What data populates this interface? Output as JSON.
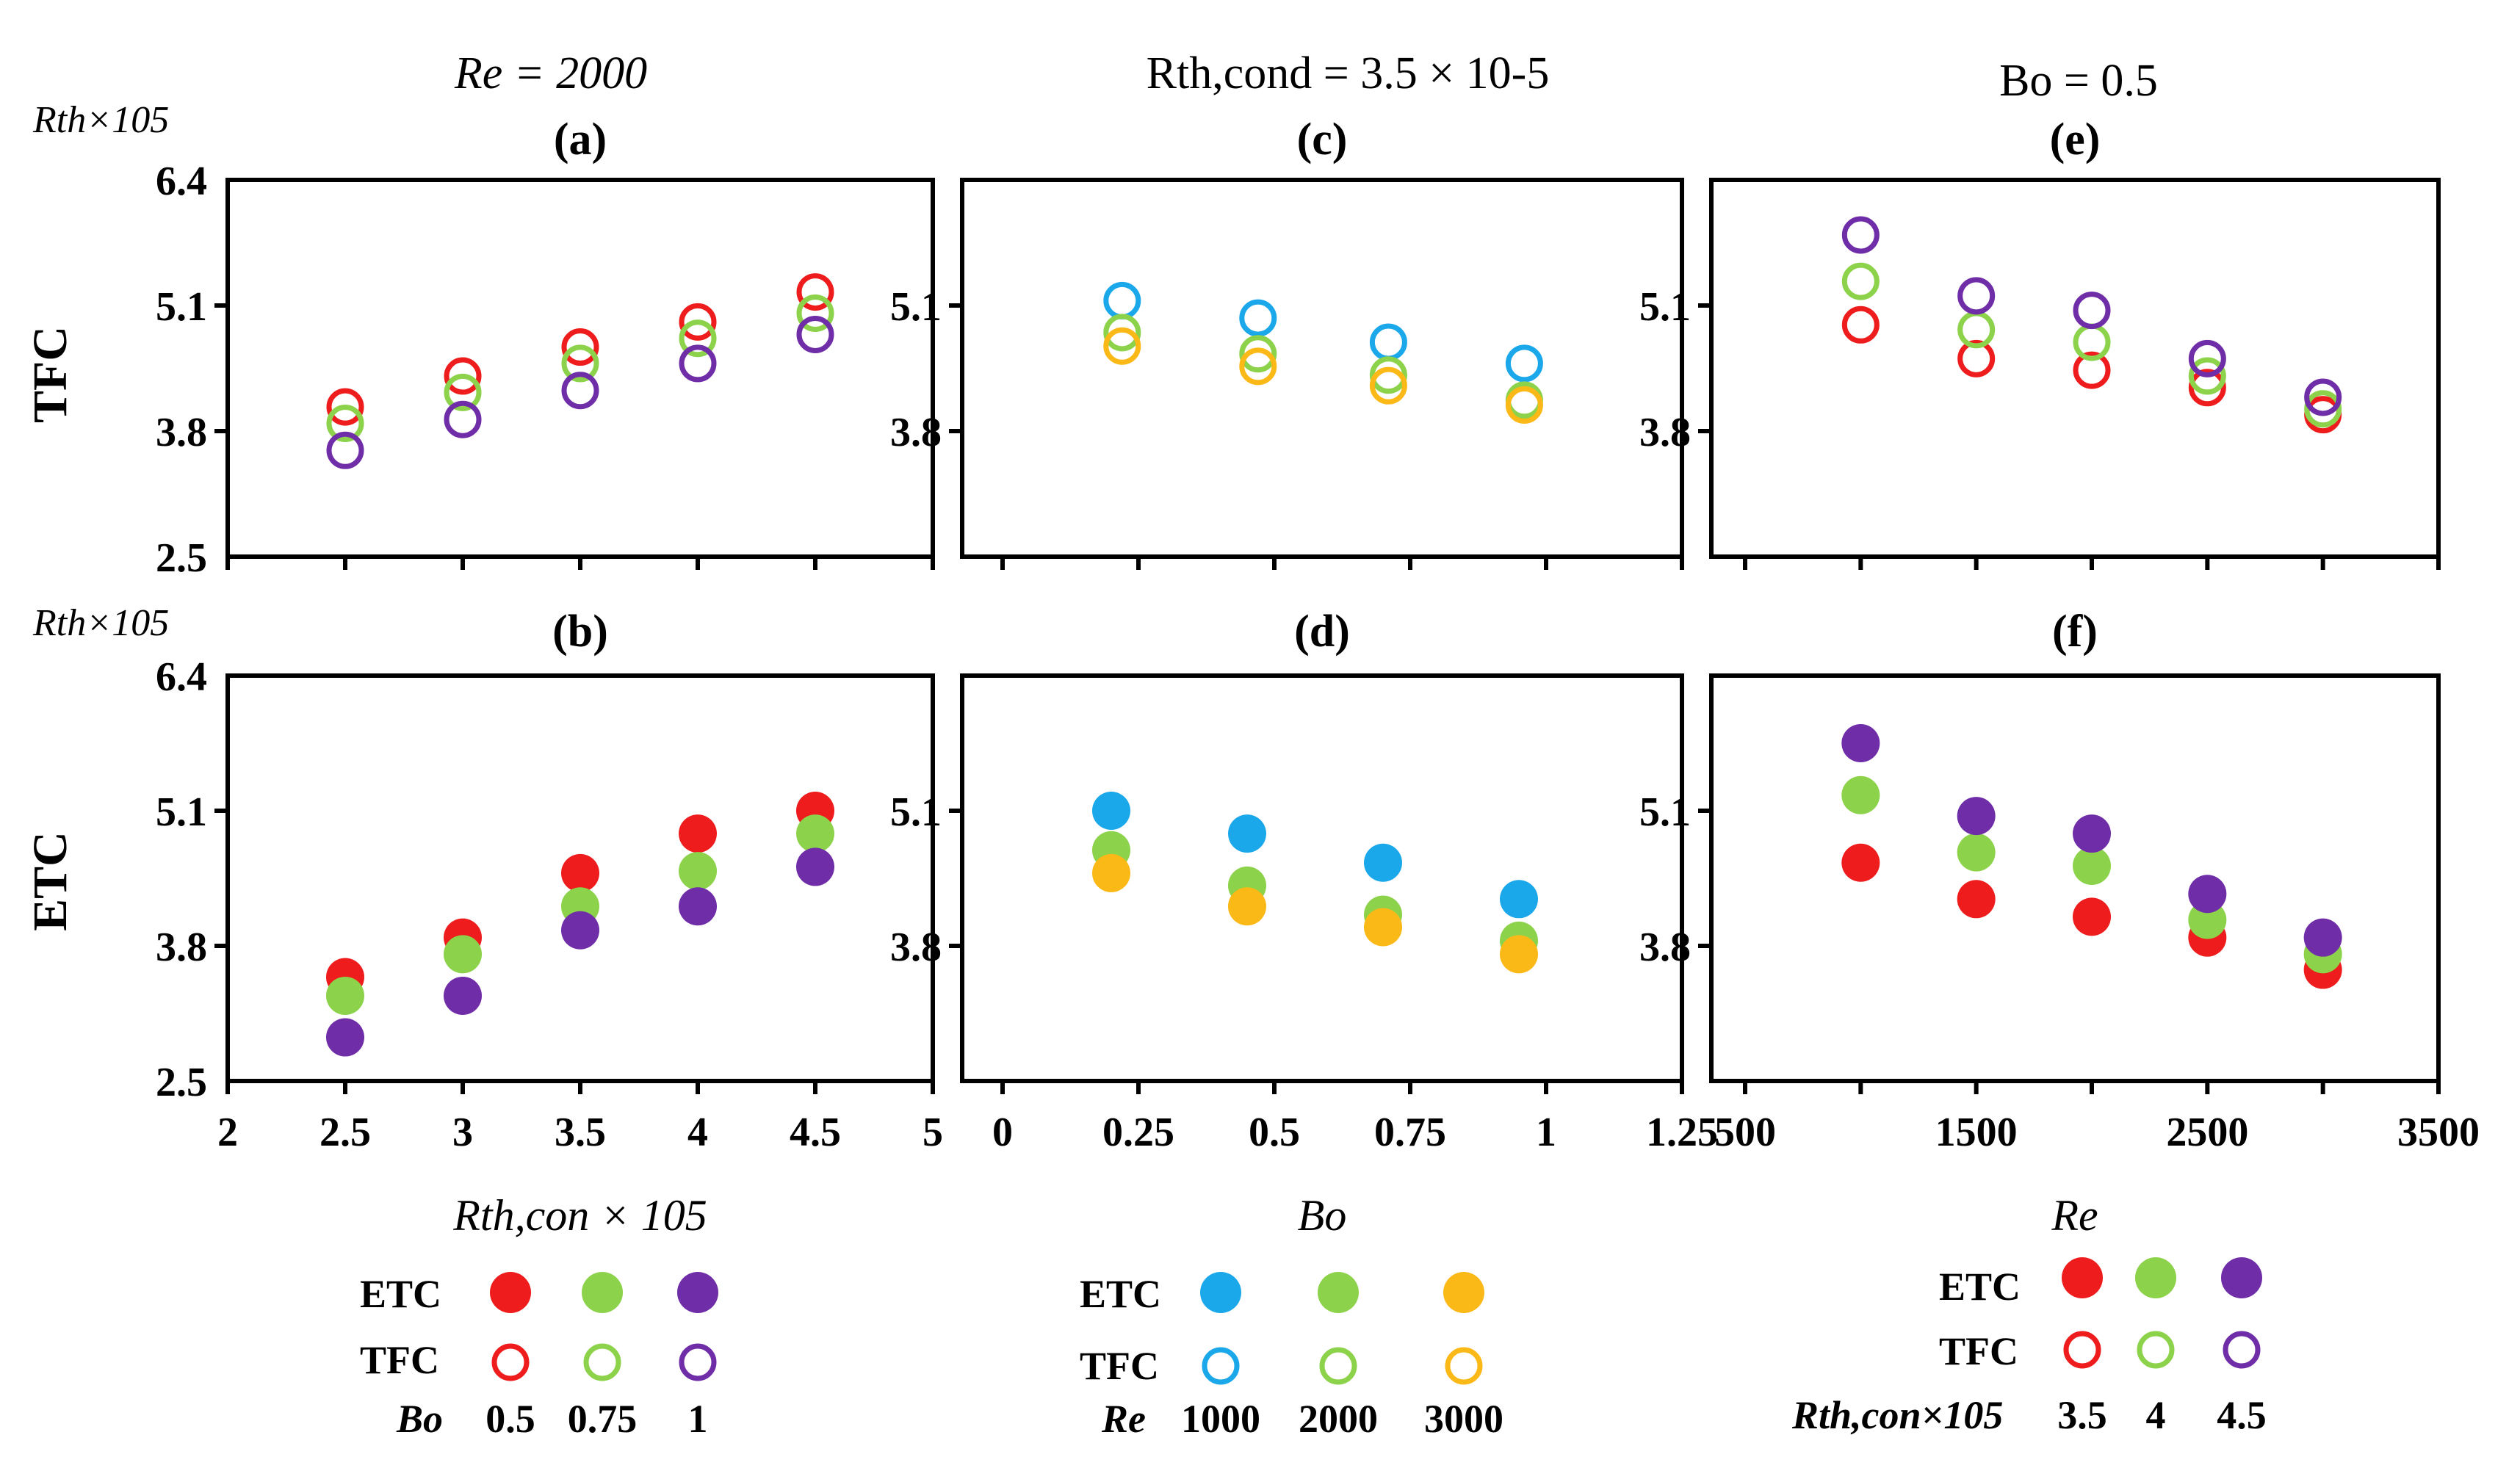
{
  "columns": [
    {
      "title": "Re = 2000"
    },
    {
      "title": "Rth,cond = 3.5 × 10-5"
    },
    {
      "title": "Bo = 0.5"
    }
  ],
  "row_labels": [
    "TFC",
    "ETC"
  ],
  "y_axis_label": "Rth×105",
  "colors": {
    "red": "#ee1c1c",
    "green": "#8cd24a",
    "purple": "#6f2da8",
    "blue": "#1aa8ea",
    "orange": "#fbb917"
  },
  "chart_data": [
    {
      "type": "scatter",
      "id": "a",
      "title": "(a)",
      "marker": "open",
      "xlim": [
        2,
        5
      ],
      "ylim": [
        2.5,
        6.4
      ],
      "yticks": [
        "2.5",
        "3.8",
        "5.1",
        "6.4"
      ],
      "x": [
        2.5,
        3,
        3.5,
        4,
        4.5
      ],
      "series": [
        {
          "color": "red",
          "values": [
            4.05,
            4.37,
            4.67,
            4.93,
            5.24
          ]
        },
        {
          "color": "green",
          "values": [
            3.88,
            4.2,
            4.5,
            4.76,
            5.02
          ]
        },
        {
          "color": "purple",
          "values": [
            3.6,
            3.92,
            4.22,
            4.5,
            4.8
          ]
        }
      ]
    },
    {
      "type": "scatter",
      "id": "b",
      "title": "(b)",
      "marker": "filled",
      "xlim": [
        2,
        5
      ],
      "ylim": [
        2.5,
        6.4
      ],
      "yticks": [
        "2.5",
        "3.8",
        "5.1",
        "6.4"
      ],
      "xticks": [
        "2",
        "2.5",
        "3",
        "3.5",
        "4",
        "4.5",
        "5"
      ],
      "xlabel": "Rth,con × 105",
      "x": [
        2.5,
        3,
        3.5,
        4,
        4.5
      ],
      "series": [
        {
          "color": "red",
          "values": [
            3.5,
            3.88,
            4.5,
            4.88,
            5.1
          ]
        },
        {
          "color": "green",
          "values": [
            3.32,
            3.72,
            4.18,
            4.52,
            4.88
          ]
        },
        {
          "color": "purple",
          "values": [
            2.92,
            3.32,
            3.95,
            4.18,
            4.56
          ]
        }
      ]
    },
    {
      "type": "scatter",
      "id": "c",
      "title": "(c)",
      "marker": "open",
      "xlim": [
        0,
        1.25
      ],
      "ylim": [
        2.5,
        6.4
      ],
      "yticks": [
        "",
        "3.8",
        "5.1",
        ""
      ],
      "x": [
        0.22,
        0.47,
        0.71,
        0.96
      ],
      "series": [
        {
          "color": "blue",
          "values": [
            5.15,
            4.97,
            4.72,
            4.5
          ]
        },
        {
          "color": "green",
          "values": [
            4.82,
            4.6,
            4.38,
            4.12
          ]
        },
        {
          "color": "orange",
          "values": [
            4.68,
            4.47,
            4.27,
            4.07
          ]
        }
      ]
    },
    {
      "type": "scatter",
      "id": "d",
      "title": "(d)",
      "marker": "filled",
      "xlim": [
        0,
        1.25
      ],
      "ylim": [
        2.5,
        6.4
      ],
      "yticks": [
        "",
        "3.8",
        "5.1",
        ""
      ],
      "xticks": [
        "0",
        "0.25",
        "0.5",
        "0.75",
        "1",
        "1.25"
      ],
      "xlabel": "Bo",
      "x": [
        0.2,
        0.45,
        0.7,
        0.95
      ],
      "series": [
        {
          "color": "blue",
          "values": [
            5.1,
            4.88,
            4.6,
            4.25
          ]
        },
        {
          "color": "green",
          "values": [
            4.72,
            4.38,
            4.1,
            3.85
          ]
        },
        {
          "color": "orange",
          "values": [
            4.5,
            4.18,
            3.98,
            3.72
          ]
        }
      ]
    },
    {
      "type": "scatter",
      "id": "e",
      "title": "(e)",
      "marker": "open",
      "xlim": [
        500,
        3500
      ],
      "ylim": [
        2.5,
        6.4
      ],
      "yticks": [
        "",
        "3.8",
        "5.1",
        ""
      ],
      "x": [
        1000,
        1500,
        2000,
        2500,
        3000
      ],
      "series": [
        {
          "color": "red",
          "values": [
            4.9,
            4.55,
            4.43,
            4.25,
            3.97
          ]
        },
        {
          "color": "green",
          "values": [
            5.35,
            4.85,
            4.72,
            4.37,
            4.03
          ]
        },
        {
          "color": "purple",
          "values": [
            5.83,
            5.2,
            5.05,
            4.55,
            4.15
          ]
        }
      ]
    },
    {
      "type": "scatter",
      "id": "f",
      "title": "(f)",
      "marker": "filled",
      "xlim": [
        500,
        3500
      ],
      "ylim": [
        2.5,
        6.4
      ],
      "yticks": [
        "",
        "3.8",
        "5.1",
        ""
      ],
      "xticks": [
        "500",
        "1500",
        "2500",
        "3500"
      ],
      "x_ticks_numeric": [
        500,
        1000,
        1500,
        2000,
        2500,
        3000,
        3500
      ],
      "xlabel": "Re",
      "x": [
        1000,
        1500,
        2000,
        2500,
        3000
      ],
      "series": [
        {
          "color": "red",
          "values": [
            4.6,
            4.25,
            4.08,
            3.88,
            3.57
          ]
        },
        {
          "color": "green",
          "values": [
            5.25,
            4.7,
            4.57,
            4.05,
            3.72
          ]
        },
        {
          "color": "purple",
          "values": [
            5.75,
            5.05,
            4.88,
            4.3,
            3.88
          ]
        }
      ]
    }
  ],
  "legends": [
    {
      "etc_label": "ETC",
      "tfc_label": "TFC",
      "param_label": "Bo",
      "colors": [
        "red",
        "green",
        "purple"
      ],
      "values": [
        "0.5",
        "0.75",
        "1"
      ]
    },
    {
      "etc_label": "ETC",
      "tfc_label": "TFC",
      "param_label": "Re",
      "colors": [
        "blue",
        "green",
        "orange"
      ],
      "values": [
        "1000",
        "2000",
        "3000"
      ]
    },
    {
      "etc_label": "ETC",
      "tfc_label": "TFC",
      "param_label": "Rth,con×105",
      "colors": [
        "red",
        "green",
        "purple"
      ],
      "values": [
        "3.5",
        "4",
        "4.5"
      ]
    }
  ]
}
